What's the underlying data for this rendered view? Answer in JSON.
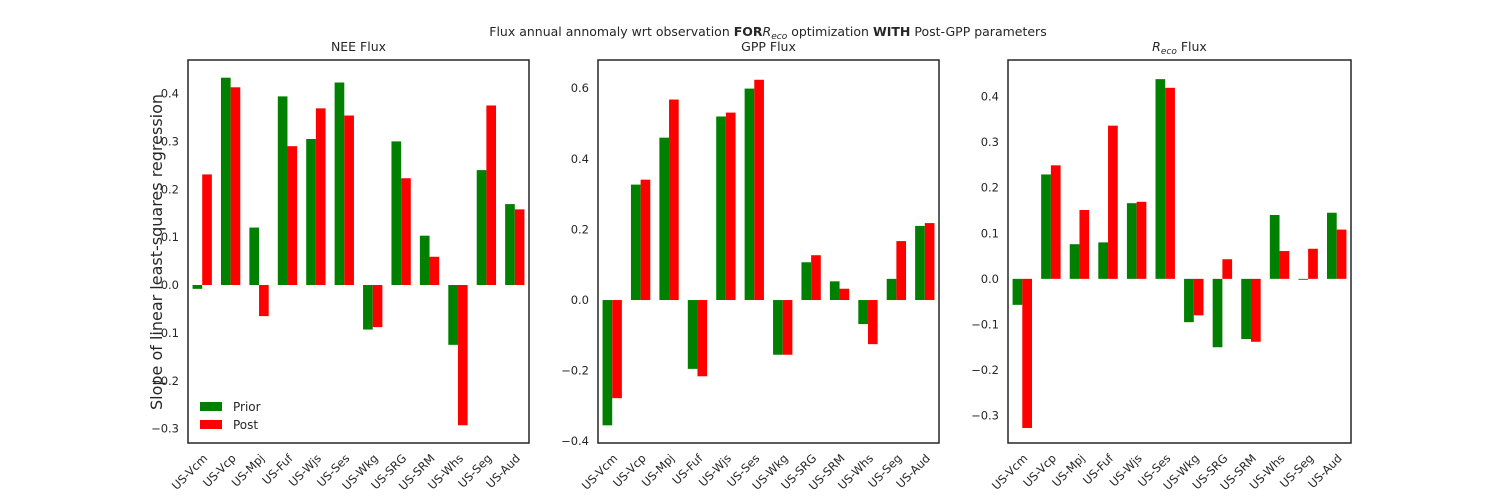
{
  "suptitle": {
    "pre": "Flux annual annomaly wrt observation ",
    "bold1": "FOR",
    "r_main": "R",
    "r_sub": "eco",
    "mid": " optimization ",
    "bold2": "WITH",
    "post": " Post-GPP parameters"
  },
  "ylabel": "Slope of linear least-squares regression",
  "legend": {
    "placement": "lower-left",
    "entries": [
      "Prior",
      "Post"
    ]
  },
  "colors": {
    "prior": "#008000",
    "post": "#ff0000",
    "axes": "#262626"
  },
  "chart_data": [
    {
      "type": "bar",
      "title": "NEE Flux",
      "categories": [
        "US-Vcm",
        "US-Vcp",
        "US-Mpj",
        "US-Fuf",
        "US-Wjs",
        "US-Ses",
        "US-Wkg",
        "US-SRG",
        "US-SRM",
        "US-Whs",
        "US-Seg",
        "US-Aud"
      ],
      "series": [
        {
          "name": "Prior",
          "values": [
            -0.008,
            0.433,
            0.12,
            0.394,
            0.305,
            0.423,
            -0.093,
            0.3,
            0.103,
            -0.125,
            0.24,
            0.169
          ]
        },
        {
          "name": "Post",
          "values": [
            0.231,
            0.413,
            -0.065,
            0.29,
            0.369,
            0.354,
            -0.088,
            0.223,
            0.059,
            -0.293,
            0.375,
            0.158
          ]
        }
      ],
      "yticks": [
        "−0.3",
        "−0.2",
        "−0.1",
        "0.0",
        "0.1",
        "0.2",
        "0.3",
        "0.4"
      ],
      "ytick_values": [
        -0.3,
        -0.2,
        -0.1,
        0.0,
        0.1,
        0.2,
        0.3,
        0.4
      ],
      "ylim": [
        -0.33,
        0.47
      ],
      "grid": false
    },
    {
      "type": "bar",
      "title": "GPP Flux",
      "categories": [
        "US-Vcm",
        "US-Vcp",
        "US-Mpj",
        "US-Fuf",
        "US-Wjs",
        "US-Ses",
        "US-Wkg",
        "US-SRG",
        "US-SRM",
        "US-Whs",
        "US-Seg",
        "US-Aud"
      ],
      "series": [
        {
          "name": "Prior",
          "values": [
            -0.355,
            0.327,
            0.46,
            -0.195,
            0.52,
            0.599,
            -0.155,
            0.107,
            0.053,
            -0.068,
            0.06,
            0.21
          ]
        },
        {
          "name": "Post",
          "values": [
            -0.278,
            0.341,
            0.568,
            -0.216,
            0.531,
            0.624,
            -0.155,
            0.127,
            0.032,
            -0.125,
            0.167,
            0.218
          ]
        }
      ],
      "yticks": [
        "−0.4",
        "−0.2",
        "0.0",
        "0.2",
        "0.4",
        "0.6"
      ],
      "ytick_values": [
        -0.4,
        -0.2,
        0.0,
        0.2,
        0.4,
        0.6
      ],
      "ylim": [
        -0.405,
        0.68
      ],
      "grid": false
    },
    {
      "type": "bar",
      "title_main": "R",
      "title_sub": "eco",
      "title_rest": " Flux",
      "categories": [
        "US-Vcm",
        "US-Vcp",
        "US-Mpj",
        "US-Fuf",
        "US-Wjs",
        "US-Ses",
        "US-Wkg",
        "US-SRG",
        "US-SRM",
        "US-Whs",
        "US-Seg",
        "US-Aud"
      ],
      "series": [
        {
          "name": "Prior",
          "values": [
            -0.057,
            0.229,
            0.076,
            0.08,
            0.166,
            0.438,
            -0.095,
            -0.15,
            -0.132,
            0.14,
            -0.002,
            0.145
          ]
        },
        {
          "name": "Post",
          "values": [
            -0.327,
            0.249,
            0.151,
            0.336,
            0.169,
            0.419,
            -0.08,
            0.043,
            -0.138,
            0.061,
            0.066,
            0.108
          ]
        }
      ],
      "yticks": [
        "−0.3",
        "−0.2",
        "−0.1",
        "0.0",
        "0.1",
        "0.2",
        "0.3",
        "0.4"
      ],
      "ytick_values": [
        -0.3,
        -0.2,
        -0.1,
        0.0,
        0.1,
        0.2,
        0.3,
        0.4
      ],
      "ylim": [
        -0.36,
        0.48
      ],
      "grid": false
    }
  ]
}
